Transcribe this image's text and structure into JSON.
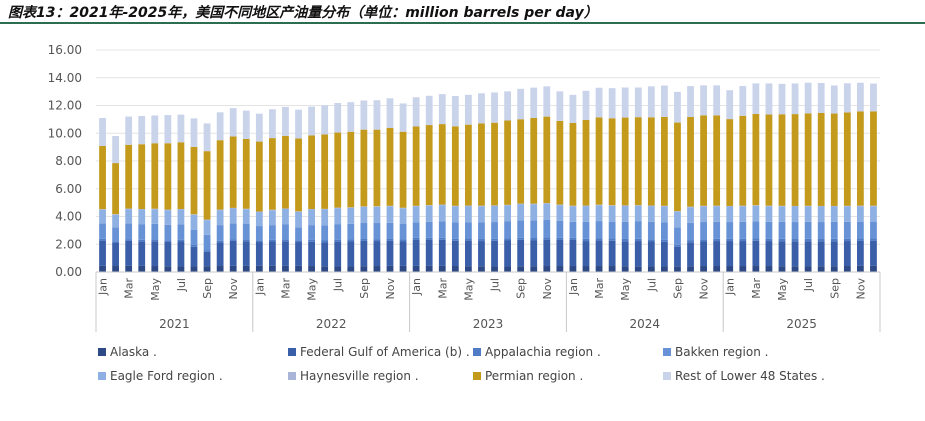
{
  "title": "图表13：2021年-2025年，美国不同地区产油量分布（单位：million barrels per day）",
  "chart_data": {
    "type": "bar",
    "stacked": true,
    "y_tick_labels": [
      "0.00",
      "2.00",
      "4.00",
      "6.00",
      "8.00",
      "10.00",
      "12.00",
      "14.00",
      "16.00"
    ],
    "ylim": [
      0,
      16
    ],
    "grid": true,
    "legend_position": "bottom",
    "years": [
      "2021",
      "2022",
      "2023",
      "2024",
      "2025"
    ],
    "month_tick_labels": [
      "Jan",
      "Mar",
      "May",
      "Jul",
      "Sep",
      "Nov"
    ],
    "categories": [
      "2021-Jan",
      "2021-Feb",
      "2021-Mar",
      "2021-Apr",
      "2021-May",
      "2021-Jun",
      "2021-Jul",
      "2021-Aug",
      "2021-Sep",
      "2021-Oct",
      "2021-Nov",
      "2021-Dec",
      "2022-Jan",
      "2022-Feb",
      "2022-Mar",
      "2022-Apr",
      "2022-May",
      "2022-Jun",
      "2022-Jul",
      "2022-Aug",
      "2022-Sep",
      "2022-Oct",
      "2022-Nov",
      "2022-Dec",
      "2023-Jan",
      "2023-Feb",
      "2023-Mar",
      "2023-Apr",
      "2023-May",
      "2023-Jun",
      "2023-Jul",
      "2023-Aug",
      "2023-Sep",
      "2023-Oct",
      "2023-Nov",
      "2023-Dec",
      "2024-Jan",
      "2024-Feb",
      "2024-Mar",
      "2024-Apr",
      "2024-May",
      "2024-Jun",
      "2024-Jul",
      "2024-Aug",
      "2024-Sep",
      "2024-Oct",
      "2024-Nov",
      "2024-Dec",
      "2025-Jan",
      "2025-Feb",
      "2025-Mar",
      "2025-Apr",
      "2025-May",
      "2025-Jun",
      "2025-Jul",
      "2025-Aug",
      "2025-Sep",
      "2025-Oct",
      "2025-Nov",
      "2025-Dec"
    ],
    "series": [
      {
        "name": "Alaska .",
        "color": "#2e4a86",
        "values": [
          0.44,
          0.43,
          0.44,
          0.44,
          0.43,
          0.41,
          0.4,
          0.4,
          0.42,
          0.43,
          0.44,
          0.44,
          0.44,
          0.44,
          0.44,
          0.44,
          0.43,
          0.41,
          0.4,
          0.4,
          0.42,
          0.43,
          0.44,
          0.44,
          0.44,
          0.44,
          0.44,
          0.43,
          0.42,
          0.41,
          0.4,
          0.4,
          0.41,
          0.42,
          0.43,
          0.43,
          0.43,
          0.43,
          0.43,
          0.43,
          0.42,
          0.41,
          0.4,
          0.4,
          0.41,
          0.42,
          0.43,
          0.43,
          0.43,
          0.43,
          0.43,
          0.43,
          0.42,
          0.41,
          0.4,
          0.41,
          0.42,
          0.43,
          0.44,
          0.44
        ]
      },
      {
        "name": "Federal Gulf of America (b) .",
        "color": "#3a5fa8",
        "values": [
          1.82,
          1.66,
          1.8,
          1.75,
          1.79,
          1.75,
          1.8,
          1.42,
          1.03,
          1.7,
          1.8,
          1.78,
          1.72,
          1.76,
          1.78,
          1.72,
          1.74,
          1.72,
          1.79,
          1.8,
          1.82,
          1.8,
          1.8,
          1.76,
          1.87,
          1.87,
          1.88,
          1.82,
          1.84,
          1.82,
          1.85,
          1.87,
          1.91,
          1.88,
          1.9,
          1.88,
          1.88,
          1.8,
          1.85,
          1.82,
          1.8,
          1.82,
          1.8,
          1.77,
          1.4,
          1.72,
          1.77,
          1.8,
          1.8,
          1.8,
          1.82,
          1.8,
          1.8,
          1.8,
          1.82,
          1.8,
          1.8,
          1.8,
          1.8,
          1.8
        ]
      },
      {
        "name": "Appalachia region .",
        "color": "#4f7cc4",
        "values": [
          0.13,
          0.13,
          0.13,
          0.13,
          0.13,
          0.13,
          0.13,
          0.13,
          0.13,
          0.13,
          0.13,
          0.13,
          0.13,
          0.13,
          0.13,
          0.13,
          0.14,
          0.14,
          0.14,
          0.14,
          0.14,
          0.14,
          0.14,
          0.14,
          0.15,
          0.15,
          0.15,
          0.15,
          0.15,
          0.15,
          0.15,
          0.15,
          0.15,
          0.15,
          0.15,
          0.15,
          0.16,
          0.16,
          0.16,
          0.16,
          0.16,
          0.16,
          0.16,
          0.16,
          0.16,
          0.16,
          0.16,
          0.16,
          0.17,
          0.17,
          0.17,
          0.17,
          0.17,
          0.17,
          0.17,
          0.17,
          0.17,
          0.17,
          0.17,
          0.17
        ]
      },
      {
        "name": "Bakken region .",
        "color": "#6792d6",
        "values": [
          1.1,
          1.0,
          1.12,
          1.13,
          1.12,
          1.11,
          1.1,
          1.1,
          1.1,
          1.12,
          1.12,
          1.11,
          1.02,
          1.05,
          1.1,
          0.93,
          1.07,
          1.1,
          1.12,
          1.13,
          1.15,
          1.16,
          1.17,
          1.12,
          1.13,
          1.16,
          1.18,
          1.17,
          1.18,
          1.19,
          1.2,
          1.22,
          1.25,
          1.27,
          1.27,
          1.22,
          1.15,
          1.22,
          1.23,
          1.22,
          1.24,
          1.25,
          1.25,
          1.26,
          1.25,
          1.24,
          1.24,
          1.23,
          1.2,
          1.22,
          1.23,
          1.22,
          1.22,
          1.22,
          1.22,
          1.22,
          1.22,
          1.22,
          1.22,
          1.22
        ]
      },
      {
        "name": "Eagle Ford region .",
        "color": "#8fb0e2",
        "values": [
          1.0,
          0.91,
          1.04,
          1.05,
          1.05,
          1.06,
          1.07,
          1.07,
          1.06,
          1.08,
          1.09,
          1.06,
          1.01,
          1.07,
          1.09,
          1.11,
          1.12,
          1.14,
          1.15,
          1.15,
          1.16,
          1.17,
          1.18,
          1.13,
          1.14,
          1.16,
          1.17,
          1.16,
          1.16,
          1.17,
          1.16,
          1.16,
          1.17,
          1.17,
          1.18,
          1.14,
          1.12,
          1.14,
          1.14,
          1.14,
          1.14,
          1.14,
          1.14,
          1.14,
          1.13,
          1.13,
          1.13,
          1.12,
          1.12,
          1.12,
          1.12,
          1.12,
          1.12,
          1.12,
          1.12,
          1.12,
          1.11,
          1.11,
          1.11,
          1.11
        ]
      },
      {
        "name": "Haynesville region .",
        "color": "#a9b5d8",
        "values": [
          0.04,
          0.04,
          0.04,
          0.04,
          0.04,
          0.04,
          0.04,
          0.04,
          0.04,
          0.04,
          0.04,
          0.04,
          0.04,
          0.04,
          0.04,
          0.04,
          0.04,
          0.04,
          0.04,
          0.04,
          0.04,
          0.04,
          0.04,
          0.04,
          0.04,
          0.04,
          0.04,
          0.04,
          0.04,
          0.04,
          0.04,
          0.04,
          0.04,
          0.04,
          0.04,
          0.04,
          0.04,
          0.04,
          0.04,
          0.04,
          0.04,
          0.04,
          0.04,
          0.04,
          0.04,
          0.04,
          0.04,
          0.04,
          0.04,
          0.04,
          0.04,
          0.04,
          0.04,
          0.04,
          0.04,
          0.04,
          0.04,
          0.04,
          0.04,
          0.04
        ]
      },
      {
        "name": "Permian region .",
        "color": "#c39a1c",
        "values": [
          4.55,
          3.68,
          4.6,
          4.67,
          4.72,
          4.78,
          4.81,
          4.86,
          4.93,
          5.0,
          5.15,
          5.03,
          5.04,
          5.16,
          5.23,
          5.25,
          5.3,
          5.36,
          5.41,
          5.45,
          5.53,
          5.52,
          5.61,
          5.48,
          5.72,
          5.77,
          5.8,
          5.73,
          5.83,
          5.93,
          5.96,
          6.08,
          6.08,
          6.17,
          6.23,
          6.03,
          5.96,
          6.17,
          6.29,
          6.27,
          6.33,
          6.34,
          6.36,
          6.4,
          6.38,
          6.46,
          6.52,
          6.51,
          6.26,
          6.48,
          6.58,
          6.57,
          6.6,
          6.62,
          6.66,
          6.71,
          6.66,
          6.73,
          6.79,
          6.8
        ]
      },
      {
        "name": "Rest of Lower 48 States .",
        "color": "#c9d3ea",
        "values": [
          2.02,
          1.95,
          2.03,
          2.03,
          2.0,
          2.03,
          1.99,
          2.05,
          2.0,
          2.01,
          2.04,
          2.04,
          2.01,
          2.08,
          2.09,
          2.08,
          2.08,
          2.1,
          2.13,
          2.13,
          2.1,
          2.12,
          2.14,
          2.04,
          2.1,
          2.11,
          2.16,
          2.18,
          2.15,
          2.17,
          2.18,
          2.1,
          2.19,
          2.19,
          2.18,
          2.13,
          2.03,
          2.1,
          2.14,
          2.17,
          2.17,
          2.14,
          2.23,
          2.27,
          2.21,
          2.23,
          2.16,
          2.16,
          2.08,
          2.14,
          2.2,
          2.24,
          2.19,
          2.21,
          2.21,
          2.15,
          2.02,
          2.1,
          2.07,
          2.0
        ]
      }
    ]
  }
}
